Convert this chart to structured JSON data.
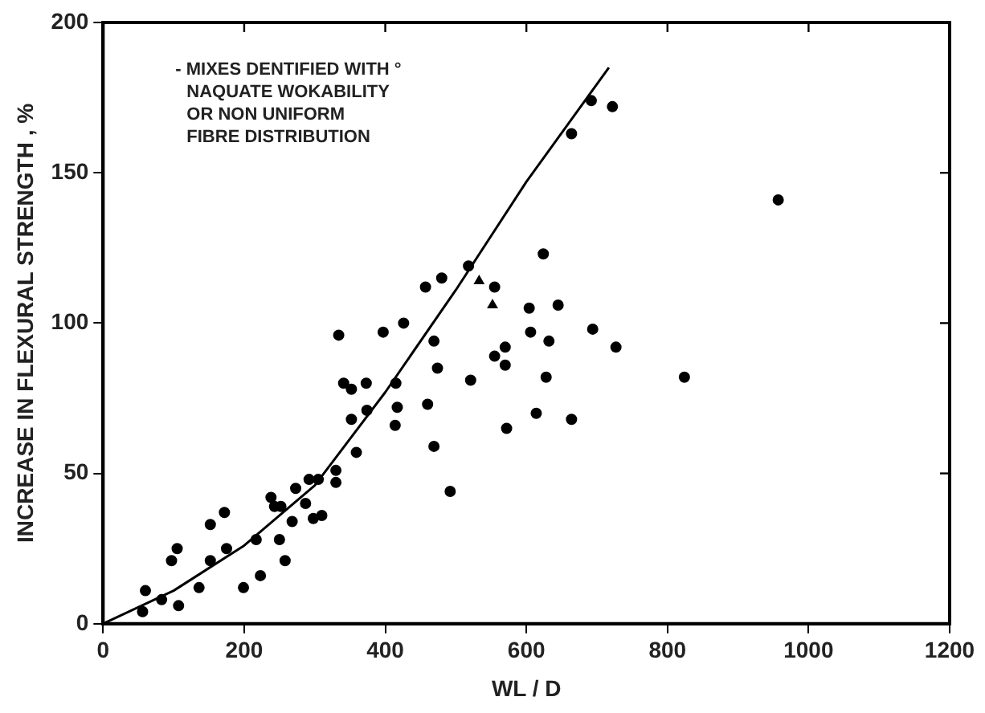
{
  "chart_data": {
    "type": "scatter",
    "xlabel": "WL / D",
    "ylabel": "INCREASE IN FLEXURAL STRENGTH , %",
    "xlim": [
      0,
      1200
    ],
    "xticks": [
      0,
      200,
      400,
      600,
      800,
      1000,
      1200
    ],
    "ylim": [
      0,
      200
    ],
    "yticks": [
      0,
      50,
      100,
      150,
      200
    ],
    "grid": false,
    "legend": false,
    "annotations": [
      "- MIXES DENTIFIED WITH °\nNAQUATE WOKABILITY\nOR NON UNIFORM\nFIBRE DISTRIBUTION"
    ],
    "series": [
      {
        "marker": "circle",
        "color": "#000000",
        "x": [
          56,
          107,
          60,
          83,
          97,
          105,
          136,
          152,
          172,
          152,
          175,
          199,
          217,
          223,
          238,
          243,
          252,
          250,
          258,
          268,
          273,
          287,
          292,
          298,
          305,
          310,
          330,
          330,
          334,
          341,
          352,
          352,
          359,
          373,
          374,
          397,
          415,
          417,
          414,
          426,
          457,
          480,
          460,
          469,
          469,
          474,
          492,
          518,
          521,
          555,
          555,
          570,
          570,
          572,
          604,
          606,
          614,
          624,
          628,
          632,
          645,
          664,
          664,
          694,
          692,
          722,
          727,
          824,
          957
        ],
        "values": [
          4,
          6,
          11,
          8,
          21,
          25,
          12,
          21,
          37,
          33,
          25,
          12,
          28,
          16,
          42,
          39,
          39,
          28,
          21,
          34,
          45,
          40,
          48,
          35,
          48,
          36,
          47,
          51,
          96,
          80,
          78,
          68,
          57,
          80,
          71,
          97,
          80,
          72,
          66,
          100,
          112,
          115,
          73,
          59,
          94,
          85,
          44,
          119,
          81,
          112,
          89,
          92,
          86,
          65,
          105,
          97,
          70,
          123,
          82,
          94,
          106,
          163,
          68,
          98,
          174,
          172,
          92,
          82,
          141
        ]
      },
      {
        "marker": "triangle",
        "color": "#000000",
        "x": [
          533,
          552
        ],
        "values": [
          114,
          106
        ]
      },
      {
        "type": "line",
        "marker": "none",
        "line_style": "solid",
        "color": "#000000",
        "x": [
          0,
          100,
          200,
          300,
          400,
          500,
          600,
          717
        ],
        "values": [
          0,
          11,
          26,
          46,
          77,
          111,
          147,
          185
        ]
      }
    ]
  }
}
